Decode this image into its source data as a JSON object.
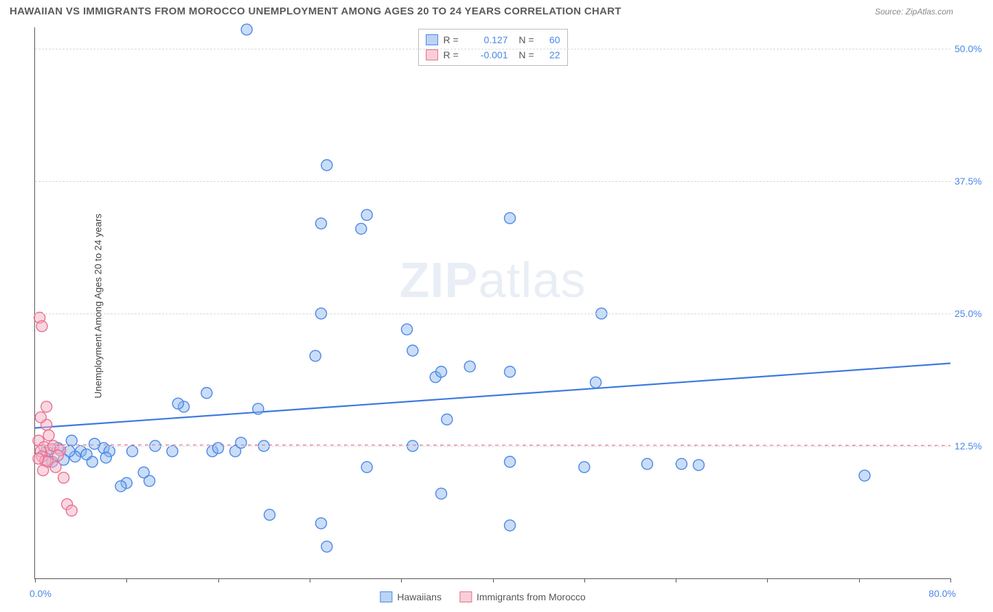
{
  "header": {
    "title": "HAWAIIAN VS IMMIGRANTS FROM MOROCCO UNEMPLOYMENT AMONG AGES 20 TO 24 YEARS CORRELATION CHART",
    "source": "Source: ZipAtlas.com"
  },
  "ylabel": "Unemployment Among Ages 20 to 24 years",
  "watermark": {
    "part1": "ZIP",
    "part2": "atlas"
  },
  "chart": {
    "type": "scatter",
    "xlim": [
      0,
      80
    ],
    "ylim": [
      0,
      52
    ],
    "x_start_label": "0.0%",
    "x_end_label": "80.0%",
    "x_ticks": [
      0,
      8,
      16,
      24,
      32,
      40,
      48,
      56,
      64,
      72,
      80
    ],
    "y_gridlines": [
      {
        "v": 12.5,
        "label": "12.5%"
      },
      {
        "v": 25.0,
        "label": "25.0%"
      },
      {
        "v": 37.5,
        "label": "37.5%"
      },
      {
        "v": 50.0,
        "label": "50.0%"
      }
    ],
    "background_color": "#ffffff",
    "grid_color": "#d8d8d8",
    "marker_radius": 8,
    "marker_stroke_width": 1.4,
    "series": {
      "blue": {
        "label": "Hawaiians",
        "fill": "rgba(135,180,235,0.45)",
        "stroke": "#4a86e8",
        "points": [
          [
            18.5,
            51.8
          ],
          [
            25.5,
            39.0
          ],
          [
            25.0,
            33.5
          ],
          [
            28.5,
            33.0
          ],
          [
            29.0,
            34.3
          ],
          [
            41.5,
            34.0
          ],
          [
            25.0,
            25.0
          ],
          [
            33.0,
            21.5
          ],
          [
            32.5,
            23.5
          ],
          [
            35.0,
            19.0
          ],
          [
            35.5,
            19.5
          ],
          [
            49.5,
            25.0
          ],
          [
            36.0,
            15.0
          ],
          [
            38.0,
            20.0
          ],
          [
            49.0,
            18.5
          ],
          [
            35.5,
            8.0
          ],
          [
            33.0,
            12.5
          ],
          [
            29.0,
            10.5
          ],
          [
            20.0,
            12.5
          ],
          [
            19.5,
            16.0
          ],
          [
            20.5,
            6.0
          ],
          [
            25.5,
            3.0
          ],
          [
            25.0,
            5.2
          ],
          [
            15.5,
            12.0
          ],
          [
            15.0,
            17.5
          ],
          [
            13.0,
            16.2
          ],
          [
            12.0,
            12.0
          ],
          [
            10.5,
            12.5
          ],
          [
            10.0,
            9.2
          ],
          [
            9.5,
            10.0
          ],
          [
            8.0,
            9.0
          ],
          [
            8.5,
            12.0
          ],
          [
            7.5,
            8.7
          ],
          [
            6.0,
            12.3
          ],
          [
            6.5,
            12.0
          ],
          [
            5.2,
            12.7
          ],
          [
            5.0,
            11.0
          ],
          [
            4.0,
            12.0
          ],
          [
            3.5,
            11.5
          ],
          [
            3.0,
            12.0
          ],
          [
            2.5,
            11.2
          ],
          [
            2.0,
            12.3
          ],
          [
            1.5,
            11.0
          ],
          [
            1.0,
            12.0
          ],
          [
            41.5,
            5.0
          ],
          [
            41.5,
            11.0
          ],
          [
            48.0,
            10.5
          ],
          [
            53.5,
            10.8
          ],
          [
            56.5,
            10.8
          ],
          [
            58.0,
            10.7
          ],
          [
            72.5,
            9.7
          ],
          [
            41.5,
            19.5
          ],
          [
            12.5,
            16.5
          ],
          [
            16.0,
            12.3
          ],
          [
            17.5,
            12.0
          ],
          [
            18.0,
            12.8
          ],
          [
            4.5,
            11.7
          ],
          [
            6.2,
            11.4
          ],
          [
            3.2,
            13.0
          ],
          [
            24.5,
            21.0
          ]
        ],
        "regression": {
          "x1": 0,
          "y1": 14.2,
          "x2": 80,
          "y2": 20.3,
          "stroke": "#3b78e0",
          "width": 2.2,
          "dash": ""
        }
      },
      "pink": {
        "label": "Immigrants from Morocco",
        "fill": "rgba(244,175,195,0.5)",
        "stroke": "#e86f8f",
        "points": [
          [
            0.4,
            24.6
          ],
          [
            0.6,
            23.8
          ],
          [
            1.0,
            16.2
          ],
          [
            1.2,
            13.5
          ],
          [
            0.3,
            13.0
          ],
          [
            0.8,
            12.4
          ],
          [
            0.5,
            12.0
          ],
          [
            1.4,
            12.2
          ],
          [
            0.6,
            11.5
          ],
          [
            0.9,
            11.1
          ],
          [
            1.1,
            11.0
          ],
          [
            0.3,
            11.3
          ],
          [
            1.6,
            12.5
          ],
          [
            2.2,
            12.1
          ],
          [
            2.0,
            11.6
          ],
          [
            1.8,
            10.5
          ],
          [
            2.5,
            9.5
          ],
          [
            0.7,
            10.2
          ],
          [
            2.8,
            7.0
          ],
          [
            3.2,
            6.4
          ],
          [
            1.0,
            14.5
          ],
          [
            0.5,
            15.2
          ]
        ],
        "regression": {
          "x1": 0,
          "y1": 12.6,
          "x2": 80,
          "y2": 12.55,
          "stroke": "#e86f8f",
          "width": 1.2,
          "dash": "5,5"
        }
      }
    }
  },
  "correlation_legend": {
    "rows": [
      {
        "swatch": "blue",
        "r_label": "R =",
        "r": "0.127",
        "n_label": "N =",
        "n": "60"
      },
      {
        "swatch": "pink",
        "r_label": "R =",
        "r": "-0.001",
        "n_label": "N =",
        "n": "22"
      }
    ]
  },
  "bottom_legend": {
    "items": [
      {
        "swatch": "blue",
        "label": "Hawaiians"
      },
      {
        "swatch": "pink",
        "label": "Immigrants from Morocco"
      }
    ]
  }
}
